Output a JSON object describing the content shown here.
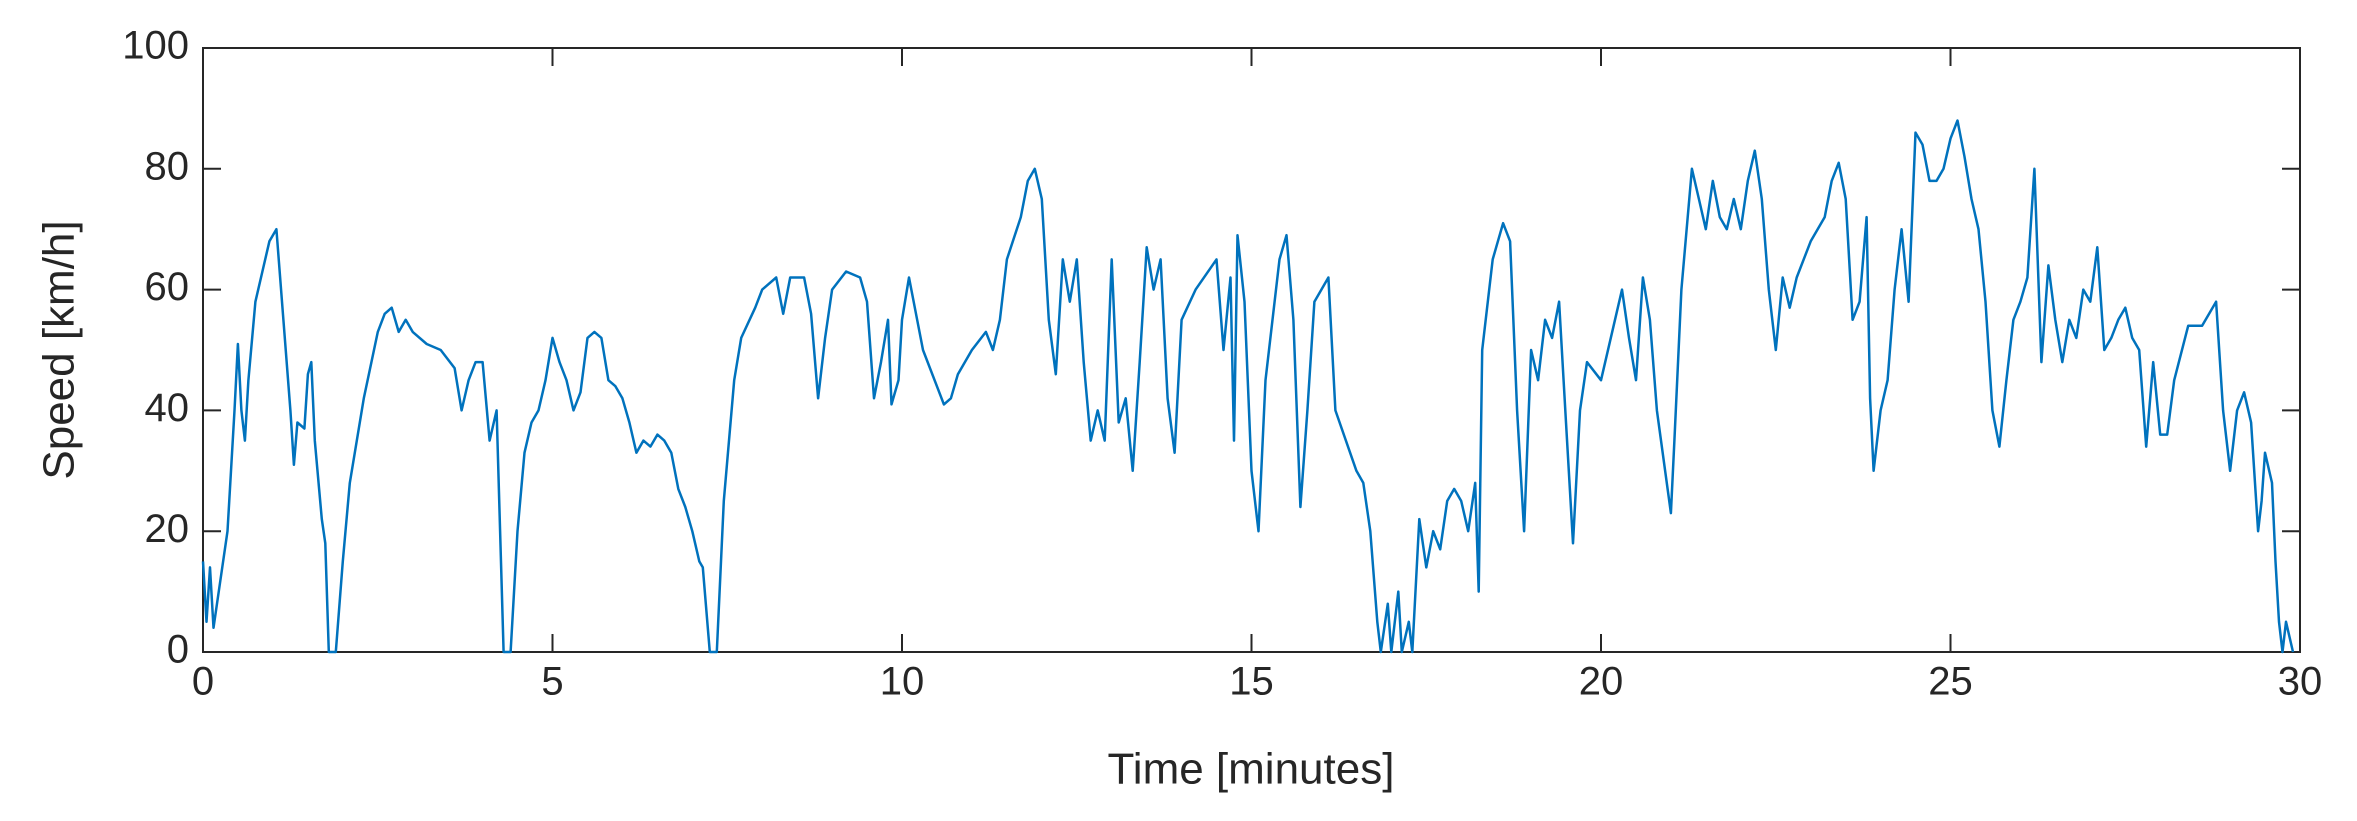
{
  "chart_data": {
    "type": "line",
    "xlabel": "Time [minutes]",
    "ylabel": "Speed [km/h]",
    "xlim": [
      0,
      30
    ],
    "xticks": [
      0,
      5,
      10,
      15,
      20,
      25,
      30
    ],
    "ylim": [
      0,
      100
    ],
    "yticks": [
      0,
      20,
      40,
      60,
      80,
      100
    ],
    "grid": false,
    "series": [
      {
        "color": "#0072bd",
        "x": [
          0,
          0.05,
          0.1,
          0.15,
          0.25,
          0.35,
          0.45,
          0.5,
          0.55,
          0.6,
          0.65,
          0.75,
          0.85,
          0.95,
          1.05,
          1.15,
          1.25,
          1.3,
          1.35,
          1.45,
          1.5,
          1.55,
          1.6,
          1.7,
          1.75,
          1.8,
          1.9,
          2.0,
          2.1,
          2.3,
          2.5,
          2.6,
          2.7,
          2.8,
          2.9,
          3.0,
          3.2,
          3.4,
          3.6,
          3.7,
          3.8,
          3.9,
          4.0,
          4.1,
          4.2,
          4.25,
          4.3,
          4.4,
          4.5,
          4.6,
          4.7,
          4.8,
          4.9,
          5.0,
          5.1,
          5.2,
          5.3,
          5.4,
          5.5,
          5.6,
          5.7,
          5.8,
          5.9,
          6.0,
          6.1,
          6.2,
          6.3,
          6.4,
          6.5,
          6.6,
          6.7,
          6.8,
          6.9,
          7.0,
          7.1,
          7.15,
          7.25,
          7.35,
          7.45,
          7.6,
          7.7,
          7.9,
          8.0,
          8.2,
          8.3,
          8.4,
          8.6,
          8.7,
          8.8,
          8.9,
          9.0,
          9.2,
          9.4,
          9.5,
          9.6,
          9.7,
          9.8,
          9.85,
          9.95,
          10.0,
          10.1,
          10.2,
          10.3,
          10.5,
          10.6,
          10.7,
          10.8,
          11.0,
          11.2,
          11.3,
          11.4,
          11.5,
          11.7,
          11.8,
          11.9,
          12.0,
          12.1,
          12.2,
          12.3,
          12.4,
          12.5,
          12.6,
          12.7,
          12.8,
          12.9,
          13.0,
          13.1,
          13.2,
          13.3,
          13.4,
          13.5,
          13.6,
          13.7,
          13.8,
          13.9,
          14.0,
          14.2,
          14.5,
          14.6,
          14.7,
          14.75,
          14.8,
          14.9,
          15.0,
          15.1,
          15.2,
          15.4,
          15.5,
          15.6,
          15.7,
          15.8,
          15.9,
          16.0,
          16.1,
          16.2,
          16.5,
          16.6,
          16.7,
          16.8,
          16.85,
          16.95,
          17.0,
          17.1,
          17.15,
          17.25,
          17.3,
          17.4,
          17.5,
          17.6,
          17.7,
          17.8,
          17.9,
          18.0,
          18.1,
          18.2,
          18.25,
          18.3,
          18.45,
          18.6,
          18.7,
          18.8,
          18.9,
          19.0,
          19.1,
          19.2,
          19.3,
          19.4,
          19.5,
          19.6,
          19.7,
          19.8,
          20.0,
          20.2,
          20.3,
          20.4,
          20.5,
          20.6,
          20.7,
          20.8,
          21.0,
          21.05,
          21.15,
          21.3,
          21.4,
          21.5,
          21.6,
          21.7,
          21.8,
          21.9,
          22.0,
          22.1,
          22.2,
          22.3,
          22.4,
          22.5,
          22.6,
          22.7,
          22.8,
          23.0,
          23.2,
          23.3,
          23.4,
          23.5,
          23.6,
          23.7,
          23.8,
          23.85,
          23.9,
          24.0,
          24.1,
          24.2,
          24.3,
          24.4,
          24.5,
          24.6,
          24.7,
          24.8,
          24.9,
          25.0,
          25.1,
          25.2,
          25.3,
          25.4,
          25.5,
          25.6,
          25.7,
          25.8,
          25.9,
          26.0,
          26.1,
          26.2,
          26.3,
          26.4,
          26.5,
          26.6,
          26.7,
          26.8,
          26.9,
          27.0,
          27.1,
          27.2,
          27.3,
          27.4,
          27.5,
          27.6,
          27.7,
          27.8,
          27.9,
          28.0,
          28.1,
          28.2,
          28.4,
          28.6,
          28.8,
          28.9,
          29.0,
          29.1,
          29.2,
          29.3,
          29.4,
          29.45,
          29.5,
          29.6,
          29.65,
          29.7,
          29.75,
          29.8,
          29.9
        ],
        "values": [
          15,
          5,
          14,
          4,
          12,
          20,
          40,
          51,
          40,
          35,
          45,
          58,
          63,
          68,
          70,
          55,
          40,
          31,
          38,
          37,
          46,
          48,
          35,
          22,
          18,
          0,
          0,
          15,
          28,
          42,
          53,
          56,
          57,
          53,
          55,
          53,
          51,
          50,
          47,
          40,
          45,
          48,
          48,
          35,
          40,
          20,
          0,
          0,
          20,
          33,
          38,
          40,
          45,
          52,
          48,
          45,
          40,
          43,
          52,
          53,
          52,
          45,
          44,
          42,
          38,
          33,
          35,
          34,
          36,
          35,
          33,
          27,
          24,
          20,
          15,
          14,
          0,
          0,
          25,
          45,
          52,
          57,
          60,
          62,
          56,
          62,
          62,
          56,
          42,
          52,
          60,
          63,
          62,
          58,
          42,
          48,
          55,
          41,
          45,
          55,
          62,
          56,
          50,
          44,
          41,
          42,
          46,
          50,
          53,
          50,
          55,
          65,
          72,
          78,
          80,
          75,
          55,
          46,
          65,
          58,
          65,
          48,
          35,
          40,
          35,
          65,
          38,
          42,
          30,
          48,
          67,
          60,
          65,
          42,
          33,
          55,
          60,
          65,
          50,
          62,
          35,
          69,
          58,
          30,
          20,
          45,
          65,
          69,
          55,
          24,
          40,
          58,
          60,
          62,
          40,
          30,
          28,
          20,
          5,
          0,
          8,
          0,
          10,
          0,
          5,
          0,
          22,
          14,
          20,
          17,
          25,
          27,
          25,
          20,
          28,
          10,
          50,
          65,
          71,
          68,
          40,
          20,
          50,
          45,
          55,
          52,
          58,
          38,
          18,
          40,
          48,
          45,
          55,
          60,
          52,
          45,
          62,
          55,
          40,
          23,
          35,
          60,
          80,
          75,
          70,
          78,
          72,
          70,
          75,
          70,
          78,
          83,
          75,
          60,
          50,
          62,
          57,
          62,
          68,
          72,
          78,
          81,
          75,
          55,
          58,
          72,
          42,
          30,
          40,
          45,
          60,
          70,
          58,
          86,
          84,
          78,
          78,
          80,
          85,
          88,
          82,
          75,
          70,
          58,
          40,
          34,
          45,
          55,
          58,
          62,
          80,
          48,
          64,
          55,
          48,
          55,
          52,
          60,
          58,
          67,
          50,
          52,
          55,
          57,
          52,
          50,
          34,
          48,
          36,
          36,
          45,
          54,
          54,
          58,
          40,
          30,
          40,
          43,
          38,
          20,
          25,
          33,
          28,
          15,
          5,
          0,
          5,
          0
        ]
      }
    ]
  }
}
